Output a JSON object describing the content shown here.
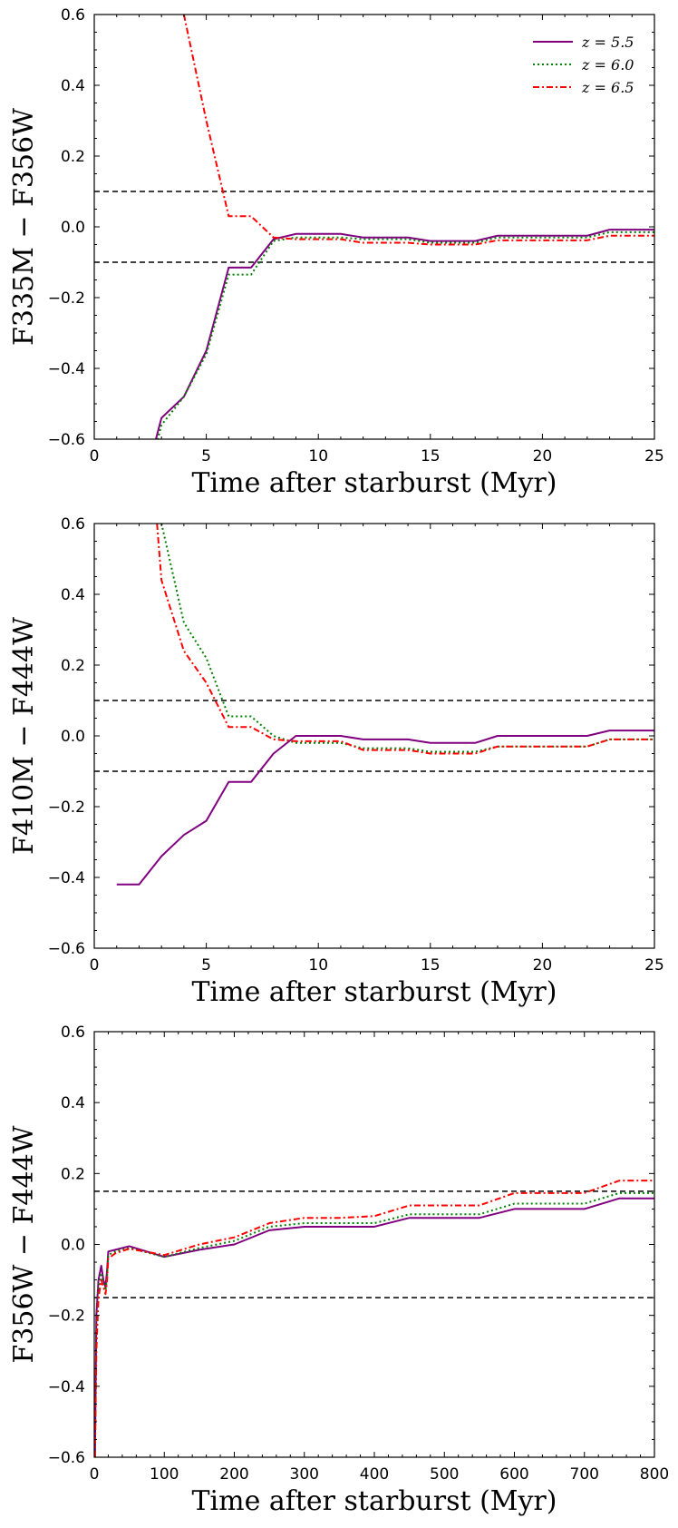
{
  "colors": {
    "z55": "#800080",
    "z60": "#008000",
    "z65": "#ff0000",
    "ref": "#000000"
  },
  "chart_data": [
    {
      "type": "line",
      "xlabel": "Time after starburst (Myr)",
      "ylabel": "F335M − F356W",
      "xlim": [
        0,
        25
      ],
      "ylim": [
        -0.6,
        0.6
      ],
      "xticks": [
        0,
        5,
        10,
        15,
        20,
        25
      ],
      "yticks": [
        -0.6,
        -0.4,
        -0.2,
        0.0,
        0.2,
        0.4,
        0.6
      ],
      "hlines": [
        0.1,
        -0.1
      ],
      "grid": false,
      "legend": "top-right",
      "series": [
        {
          "name": "z = 5.5",
          "style": "solid",
          "color": "#800080",
          "x": [
            2,
            3,
            4,
            5,
            6,
            7,
            8,
            9,
            10,
            11,
            12,
            13,
            14,
            15,
            16,
            17,
            18,
            19,
            20,
            21,
            22,
            23,
            24,
            25
          ],
          "y": [
            -0.78,
            -0.54,
            -0.48,
            -0.35,
            -0.115,
            -0.115,
            -0.035,
            -0.02,
            -0.02,
            -0.02,
            -0.03,
            -0.03,
            -0.03,
            -0.04,
            -0.04,
            -0.04,
            -0.025,
            -0.025,
            -0.025,
            -0.025,
            -0.025,
            -0.008,
            -0.008,
            -0.008
          ]
        },
        {
          "name": "z = 6.0",
          "style": "dotted",
          "color": "#008000",
          "x": [
            2,
            3,
            4,
            5,
            6,
            7,
            8,
            9,
            10,
            11,
            12,
            13,
            14,
            15,
            16,
            17,
            18,
            19,
            20,
            21,
            22,
            23,
            24,
            25
          ],
          "y": [
            -0.8,
            -0.56,
            -0.48,
            -0.36,
            -0.135,
            -0.135,
            -0.04,
            -0.03,
            -0.03,
            -0.03,
            -0.035,
            -0.035,
            -0.035,
            -0.045,
            -0.045,
            -0.045,
            -0.03,
            -0.03,
            -0.03,
            -0.03,
            -0.03,
            -0.015,
            -0.015,
            -0.015
          ]
        },
        {
          "name": "z = 6.5",
          "style": "dashdot",
          "color": "#ff0000",
          "x": [
            4,
            5,
            6,
            7,
            8,
            9,
            10,
            11,
            12,
            13,
            14,
            15,
            16,
            17,
            18,
            19,
            20,
            21,
            22,
            23,
            24,
            25
          ],
          "y": [
            0.6,
            0.3,
            0.03,
            0.03,
            -0.03,
            -0.035,
            -0.035,
            -0.035,
            -0.045,
            -0.045,
            -0.045,
            -0.05,
            -0.05,
            -0.05,
            -0.038,
            -0.038,
            -0.038,
            -0.038,
            -0.038,
            -0.025,
            -0.025,
            -0.025
          ]
        }
      ]
    },
    {
      "type": "line",
      "xlabel": "Time after starburst (Myr)",
      "ylabel": "F410M − F444W",
      "xlim": [
        0,
        25
      ],
      "ylim": [
        -0.6,
        0.6
      ],
      "xticks": [
        0,
        5,
        10,
        15,
        20,
        25
      ],
      "yticks": [
        -0.6,
        -0.4,
        -0.2,
        0.0,
        0.2,
        0.4,
        0.6
      ],
      "hlines": [
        0.1,
        -0.1
      ],
      "grid": false,
      "series": [
        {
          "name": "z = 5.5",
          "style": "solid",
          "color": "#800080",
          "x": [
            1,
            2,
            3,
            4,
            5,
            6,
            7,
            8,
            9,
            10,
            11,
            12,
            13,
            14,
            15,
            16,
            17,
            18,
            19,
            20,
            21,
            22,
            23,
            24,
            25
          ],
          "y": [
            -0.42,
            -0.42,
            -0.34,
            -0.28,
            -0.24,
            -0.13,
            -0.13,
            -0.05,
            0.0,
            0.0,
            0.0,
            -0.01,
            -0.01,
            -0.01,
            -0.02,
            -0.02,
            -0.02,
            0.0,
            0.0,
            0.0,
            0.0,
            0.0,
            0.015,
            0.015,
            0.015
          ]
        },
        {
          "name": "z = 6.0",
          "style": "dotted",
          "color": "#008000",
          "x": [
            3,
            4,
            5,
            6,
            7,
            8,
            9,
            10,
            11,
            12,
            13,
            14,
            15,
            16,
            17,
            18,
            19,
            20,
            21,
            22,
            23,
            24,
            25
          ],
          "y": [
            0.6,
            0.32,
            0.22,
            0.055,
            0.055,
            0.0,
            -0.02,
            -0.02,
            -0.02,
            -0.035,
            -0.035,
            -0.035,
            -0.045,
            -0.045,
            -0.045,
            -0.03,
            -0.03,
            -0.03,
            -0.03,
            -0.03,
            -0.01,
            -0.01,
            -0.01
          ]
        },
        {
          "name": "z = 6.5",
          "style": "dashdot",
          "color": "#ff0000",
          "x": [
            2.8,
            3,
            4,
            5,
            6,
            7,
            8,
            9,
            10,
            11,
            12,
            13,
            14,
            15,
            16,
            17,
            18,
            19,
            20,
            21,
            22,
            23,
            24,
            25
          ],
          "y": [
            0.6,
            0.44,
            0.24,
            0.15,
            0.025,
            0.025,
            -0.01,
            -0.015,
            -0.015,
            -0.015,
            -0.04,
            -0.04,
            -0.04,
            -0.05,
            -0.05,
            -0.05,
            -0.03,
            -0.03,
            -0.03,
            -0.03,
            -0.03,
            -0.01,
            -0.01,
            -0.01
          ]
        }
      ]
    },
    {
      "type": "line",
      "xlabel": "Time after starburst (Myr)",
      "ylabel": "F356W − F444W",
      "xlim": [
        0,
        800
      ],
      "ylim": [
        -0.6,
        0.6
      ],
      "xticks": [
        0,
        100,
        200,
        300,
        400,
        500,
        600,
        700,
        800
      ],
      "yticks": [
        -0.6,
        -0.4,
        -0.2,
        0.0,
        0.2,
        0.4,
        0.6
      ],
      "hlines": [
        0.15,
        -0.15
      ],
      "grid": false,
      "series": [
        {
          "name": "z = 5.5",
          "style": "solid",
          "color": "#800080",
          "x": [
            1,
            3,
            6,
            10,
            13,
            16,
            18,
            20,
            30,
            50,
            100,
            150,
            200,
            250,
            300,
            350,
            400,
            450,
            500,
            550,
            600,
            650,
            700,
            750,
            800
          ],
          "y": [
            -0.6,
            -0.2,
            -0.1,
            -0.06,
            -0.1,
            -0.12,
            -0.08,
            -0.02,
            -0.015,
            -0.005,
            -0.035,
            -0.015,
            0.0,
            0.04,
            0.05,
            0.05,
            0.05,
            0.075,
            0.075,
            0.075,
            0.1,
            0.1,
            0.1,
            0.13,
            0.13
          ]
        },
        {
          "name": "z = 6.0",
          "style": "dotted",
          "color": "#008000",
          "x": [
            1,
            3,
            6,
            10,
            13,
            16,
            18,
            20,
            30,
            50,
            100,
            150,
            200,
            250,
            300,
            350,
            400,
            450,
            500,
            550,
            600,
            650,
            700,
            750,
            800
          ],
          "y": [
            -0.6,
            -0.25,
            -0.12,
            -0.08,
            -0.11,
            -0.13,
            -0.1,
            -0.03,
            -0.02,
            -0.01,
            -0.035,
            -0.01,
            0.01,
            0.05,
            0.06,
            0.06,
            0.06,
            0.085,
            0.085,
            0.085,
            0.115,
            0.115,
            0.115,
            0.145,
            0.145
          ]
        },
        {
          "name": "z = 6.5",
          "style": "dashdot",
          "color": "#ff0000",
          "x": [
            1,
            3,
            6,
            10,
            13,
            16,
            18,
            20,
            30,
            50,
            100,
            150,
            200,
            250,
            300,
            350,
            400,
            450,
            500,
            550,
            600,
            650,
            700,
            750,
            800
          ],
          "y": [
            -0.6,
            -0.3,
            -0.15,
            -0.1,
            -0.12,
            -0.14,
            -0.11,
            -0.04,
            -0.025,
            -0.012,
            -0.03,
            0.0,
            0.02,
            0.06,
            0.075,
            0.075,
            0.08,
            0.11,
            0.11,
            0.11,
            0.145,
            0.145,
            0.145,
            0.18,
            0.18
          ]
        }
      ]
    }
  ]
}
